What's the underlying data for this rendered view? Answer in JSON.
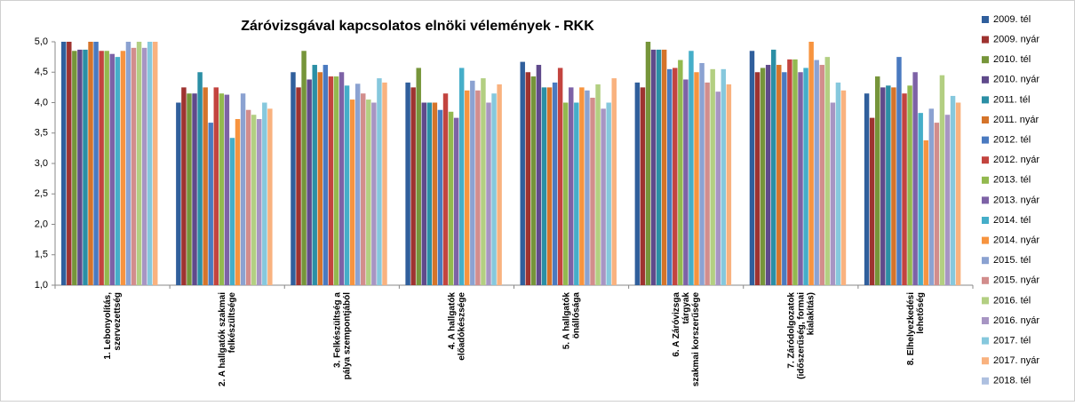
{
  "chart_data": {
    "type": "bar",
    "title": "Záróvizsgával kapcsolatos elnöki vélemények  - RKK",
    "categories": [
      "1. Lebonyolítás,\nszervezettség",
      "2. A hallgatók szakmai\nfelkészültsége",
      "3. Felkészültség a\npálya szempontjából",
      "4. A hallgatók\nelőadókészsége",
      "5. A hallgatók\nönállósága",
      "6. A Záróvizsga\ntárgyak\nszakmai korszerűsége",
      "7. Záródolgozatok\n(időszerűség, formai\nkialakítás)",
      "8. Elhelyezkedési\nlehetőség"
    ],
    "series": [
      {
        "name": "2009. tél",
        "color": "#305f9c",
        "values": [
          5.0,
          4.0,
          4.5,
          4.33,
          4.67,
          4.33,
          4.85,
          4.15
        ]
      },
      {
        "name": "2009. nyár",
        "color": "#9e3330",
        "values": [
          5.0,
          4.25,
          4.25,
          4.25,
          4.5,
          4.25,
          4.5,
          3.75
        ]
      },
      {
        "name": "2010. tél",
        "color": "#76953a",
        "values": [
          4.85,
          4.15,
          4.85,
          4.57,
          4.43,
          5.0,
          4.57,
          4.43
        ]
      },
      {
        "name": "2010. nyár",
        "color": "#5f4a8b",
        "values": [
          4.87,
          4.15,
          4.38,
          4.0,
          4.62,
          4.87,
          4.62,
          4.25
        ]
      },
      {
        "name": "2011. tél",
        "color": "#2b8fa5",
        "values": [
          4.87,
          4.5,
          4.62,
          4.0,
          4.25,
          4.87,
          4.87,
          4.28
        ]
      },
      {
        "name": "2011. nyár",
        "color": "#d5742a",
        "values": [
          5.0,
          4.25,
          4.5,
          4.0,
          4.25,
          4.87,
          4.62,
          4.25
        ]
      },
      {
        "name": "2012. tél",
        "color": "#4a7ac0",
        "values": [
          5.0,
          3.67,
          4.62,
          3.88,
          4.33,
          4.55,
          4.5,
          4.75
        ]
      },
      {
        "name": "2012. nyár",
        "color": "#c3443f",
        "values": [
          4.85,
          4.25,
          4.43,
          4.15,
          4.57,
          4.57,
          4.71,
          4.15
        ]
      },
      {
        "name": "2013. tél",
        "color": "#93b94f",
        "values": [
          4.85,
          4.15,
          4.43,
          3.85,
          4.0,
          4.7,
          4.71,
          4.28
        ]
      },
      {
        "name": "2013. nyár",
        "color": "#7d62a6",
        "values": [
          4.8,
          4.13,
          4.5,
          3.75,
          4.25,
          4.38,
          4.5,
          4.5
        ]
      },
      {
        "name": "2014. tél",
        "color": "#45aec9",
        "values": [
          4.75,
          3.42,
          4.28,
          4.57,
          4.0,
          4.85,
          4.57,
          3.83
        ]
      },
      {
        "name": "2014. nyár",
        "color": "#f7943f",
        "values": [
          4.85,
          3.73,
          4.05,
          4.2,
          4.25,
          4.5,
          5.0,
          3.38
        ]
      },
      {
        "name": "2015. tél",
        "color": "#8ba2d1",
        "values": [
          5.0,
          4.15,
          4.31,
          4.36,
          4.2,
          4.65,
          4.7,
          3.9
        ]
      },
      {
        "name": "2015. nyár",
        "color": "#d28d8c",
        "values": [
          4.9,
          3.88,
          4.15,
          4.2,
          4.08,
          4.33,
          4.62,
          3.67
        ]
      },
      {
        "name": "2016. tél",
        "color": "#b3cf82",
        "values": [
          5.0,
          3.8,
          4.05,
          4.4,
          4.3,
          4.55,
          4.75,
          4.45
        ]
      },
      {
        "name": "2016. nyár",
        "color": "#a795c3",
        "values": [
          4.9,
          3.73,
          4.0,
          4.0,
          3.9,
          4.18,
          4.0,
          3.8
        ]
      },
      {
        "name": "2017. tél",
        "color": "#86c8dd",
        "values": [
          5.0,
          4.0,
          4.4,
          4.15,
          4.0,
          4.55,
          4.33,
          4.11
        ]
      },
      {
        "name": "2017. nyár",
        "color": "#f9b27f",
        "values": [
          5.0,
          3.9,
          4.33,
          4.3,
          4.4,
          4.3,
          4.2,
          4.0
        ]
      },
      {
        "name": "2018. tél",
        "color": "#aec0e0",
        "values": [
          null,
          null,
          null,
          null,
          null,
          null,
          null,
          null
        ]
      }
    ],
    "ylim": [
      1.0,
      5.0
    ],
    "yticks": [
      {
        "value": 1.0,
        "label": "1,0"
      },
      {
        "value": 1.5,
        "label": "1,5"
      },
      {
        "value": 2.0,
        "label": "2,0"
      },
      {
        "value": 2.5,
        "label": "2,5"
      },
      {
        "value": 3.0,
        "label": "3,0"
      },
      {
        "value": 3.5,
        "label": "3,5"
      },
      {
        "value": 4.0,
        "label": "4,0"
      },
      {
        "value": 4.5,
        "label": "4,5"
      },
      {
        "value": 5.0,
        "label": "5,0"
      }
    ],
    "grid": false,
    "legend": "right"
  }
}
